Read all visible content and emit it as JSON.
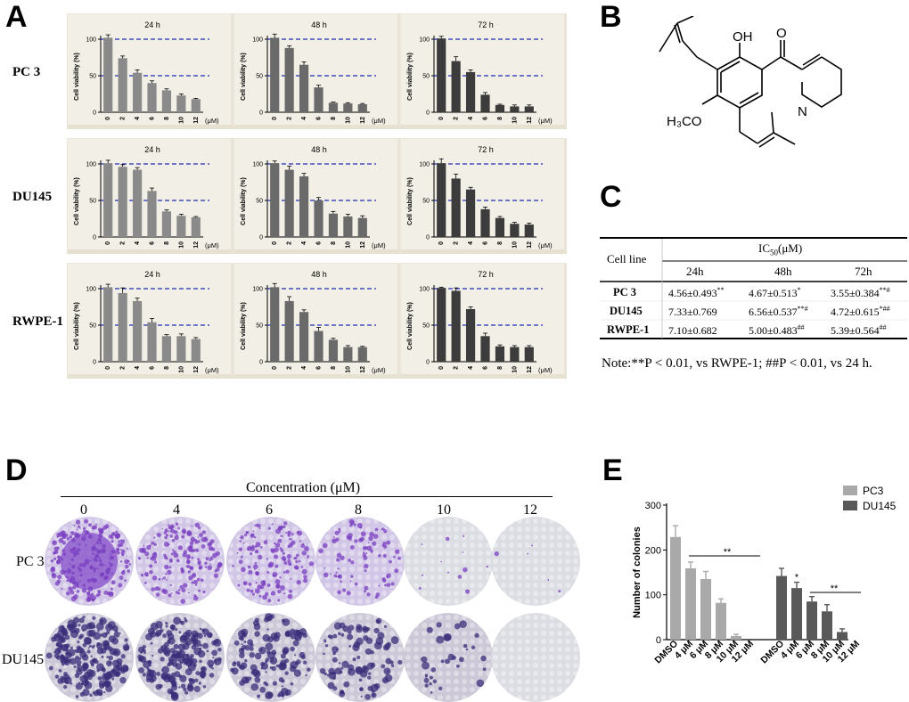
{
  "panel_letters": {
    "a": "A",
    "b": "B",
    "c": "C",
    "d": "D",
    "e": "E"
  },
  "panel_a": {
    "row_labels": [
      "PC 3",
      "DU145",
      "RWPE-1"
    ],
    "ylabel": "Cell viability (%)",
    "unit": "(μM)",
    "colors": {
      "24": "#8a8a8a",
      "48": "#6a6a6a",
      "72": "#3c3c3c",
      "dash": "#1f2bb3"
    }
  },
  "chart_data": [
    {
      "type": "bar",
      "title": "24 h",
      "row": "PC 3",
      "categories": [
        "0",
        "2",
        "4",
        "6",
        "8",
        "10",
        "12"
      ],
      "values": [
        102,
        74,
        54,
        40,
        30,
        23,
        18
      ],
      "errors": [
        4,
        3,
        4,
        3,
        2,
        2,
        1
      ],
      "ylim": [
        0,
        100
      ],
      "yticks": [
        "0",
        "50",
        "100"
      ],
      "ylabel": "Cell viability (%)",
      "reference_lines": [
        100,
        50
      ]
    },
    {
      "type": "bar",
      "title": "48 h",
      "row": "PC 3",
      "categories": [
        "0",
        "2",
        "4",
        "6",
        "8",
        "10",
        "12"
      ],
      "values": [
        102,
        88,
        65,
        34,
        13,
        12,
        11
      ],
      "errors": [
        5,
        3,
        4,
        3,
        1,
        1,
        1
      ],
      "ylim": [
        0,
        100
      ],
      "yticks": [
        "0",
        "50",
        "100"
      ],
      "ylabel": "Cell viability (%)",
      "reference_lines": [
        100,
        50
      ]
    },
    {
      "type": "bar",
      "title": "72 h",
      "row": "PC 3",
      "categories": [
        "0",
        "2",
        "4",
        "6",
        "8",
        "10",
        "12"
      ],
      "values": [
        101,
        70,
        55,
        24,
        10,
        8,
        8
      ],
      "errors": [
        3,
        6,
        3,
        3,
        1,
        2,
        2
      ],
      "ylim": [
        0,
        100
      ],
      "yticks": [
        "0",
        "50",
        "100"
      ],
      "ylabel": "Cell viability (%)",
      "reference_lines": [
        100,
        50
      ]
    },
    {
      "type": "bar",
      "title": "24 h",
      "row": "DU145",
      "categories": [
        "0",
        "2",
        "4",
        "6",
        "8",
        "10",
        "12"
      ],
      "values": [
        101,
        96,
        92,
        63,
        35,
        29,
        27
      ],
      "errors": [
        4,
        3,
        3,
        4,
        2,
        2,
        1
      ],
      "ylim": [
        0,
        100
      ],
      "yticks": [
        "0",
        "50",
        "100"
      ],
      "ylabel": "Cell viability (%)",
      "reference_lines": [
        100,
        50
      ]
    },
    {
      "type": "bar",
      "title": "48 h",
      "row": "DU145",
      "categories": [
        "0",
        "2",
        "4",
        "6",
        "8",
        "10",
        "12"
      ],
      "values": [
        101,
        92,
        83,
        50,
        32,
        28,
        26
      ],
      "errors": [
        3,
        5,
        4,
        4,
        3,
        3,
        3
      ],
      "ylim": [
        0,
        100
      ],
      "yticks": [
        "0",
        "50",
        "100"
      ],
      "ylabel": "Cell viability (%)",
      "reference_lines": [
        100,
        50
      ]
    },
    {
      "type": "bar",
      "title": "72 h",
      "row": "DU145",
      "categories": [
        "0",
        "2",
        "4",
        "6",
        "8",
        "10",
        "12"
      ],
      "values": [
        101,
        80,
        65,
        38,
        26,
        18,
        17
      ],
      "errors": [
        6,
        6,
        3,
        3,
        2,
        2,
        2
      ],
      "ylim": [
        0,
        100
      ],
      "yticks": [
        "0",
        "50",
        "100"
      ],
      "ylabel": "Cell viability (%)",
      "reference_lines": [
        100,
        50
      ]
    },
    {
      "type": "bar",
      "title": "24 h",
      "row": "RWPE-1",
      "categories": [
        "0",
        "2",
        "4",
        "6",
        "8",
        "10",
        "12"
      ],
      "values": [
        102,
        94,
        83,
        54,
        35,
        35,
        31
      ],
      "errors": [
        4,
        7,
        4,
        5,
        2,
        3,
        2
      ],
      "ylim": [
        0,
        100
      ],
      "yticks": [
        "0",
        "50",
        "100"
      ],
      "ylabel": "Cell viability (%)",
      "reference_lines": [
        100,
        50
      ]
    },
    {
      "type": "bar",
      "title": "48 h",
      "row": "RWPE-1",
      "categories": [
        "0",
        "2",
        "4",
        "6",
        "8",
        "10",
        "12"
      ],
      "values": [
        102,
        83,
        68,
        42,
        30,
        20,
        20
      ],
      "errors": [
        5,
        6,
        3,
        5,
        2,
        2,
        1
      ],
      "ylim": [
        0,
        100
      ],
      "yticks": [
        "0",
        "50",
        "100"
      ],
      "ylabel": "Cell viability (%)",
      "reference_lines": [
        100,
        50
      ]
    },
    {
      "type": "bar",
      "title": "72 h",
      "row": "RWPE-1",
      "categories": [
        "0",
        "2",
        "4",
        "6",
        "8",
        "10",
        "12"
      ],
      "values": [
        101,
        97,
        72,
        35,
        21,
        20,
        20
      ],
      "errors": [
        1,
        4,
        3,
        4,
        2,
        2,
        2
      ],
      "ylim": [
        0,
        100
      ],
      "yticks": [
        "0",
        "50",
        "100"
      ],
      "ylabel": "Cell viability (%)",
      "reference_lines": [
        100,
        50
      ]
    },
    {
      "type": "bar",
      "title": "",
      "row": "E",
      "categories": [
        "DMSO",
        "4 μM",
        "6 μM",
        "8 μM",
        "10 μM",
        "12 μM"
      ],
      "series": [
        {
          "name": "PC3",
          "values": [
            229,
            159,
            135,
            82,
            8,
            0
          ],
          "errors": [
            25,
            14,
            17,
            9,
            4,
            0
          ]
        },
        {
          "name": "DU145",
          "values": [
            142,
            115,
            85,
            63,
            17,
            0
          ],
          "errors": [
            17,
            13,
            11,
            15,
            7,
            0
          ]
        }
      ],
      "ylim": [
        0,
        300
      ],
      "yticks": [
        "0",
        "100",
        "200",
        "300"
      ],
      "ylabel": "Number of colonies",
      "annotations": [
        {
          "series": "PC3",
          "text": "**"
        },
        {
          "series": "DU145",
          "text": "*"
        },
        {
          "series": "DU145",
          "text": "**"
        }
      ],
      "legend": "top-right"
    }
  ],
  "panel_b": {
    "labels": {
      "oh": "OH",
      "o": "O",
      "n": "N",
      "h3c": "H₃CO"
    }
  },
  "panel_c": {
    "header_cell_line": "Cell line",
    "header_ic50": "IC",
    "header_ic50_sub": "50",
    "header_ic50_unit": "(μM)",
    "cols": [
      "24h",
      "48h",
      "72h"
    ],
    "rows": [
      {
        "name": "PC 3",
        "v24": "4.56±0.493",
        "s24": "**",
        "v48": "4.67±0.513",
        "s48": "*",
        "v72": "3.55±0.384",
        "s72": "**#"
      },
      {
        "name": "DU145",
        "v24": "7.33±0.769",
        "s24": "",
        "v48": "6.56±0.537",
        "s48": "**#",
        "v72": "4.72±0.615",
        "s72": "*##"
      },
      {
        "name": "RWPE-1",
        "v24": "7.10±0.682",
        "s24": "",
        "v48": "5.00±0.483",
        "s48": "##",
        "v72": "5.39±0.564",
        "s72": "##"
      }
    ],
    "note": "Note:**P < 0.01, vs RWPE-1; ##P < 0.01, vs 24 h."
  },
  "panel_d": {
    "title": "Concentration (μM)",
    "concentrations": [
      "0",
      "4",
      "6",
      "8",
      "10",
      "12"
    ],
    "row_labels": [
      "PC 3",
      "DU145"
    ],
    "colony_density": {
      "pc3": [
        1.0,
        0.8,
        0.65,
        0.4,
        0.04,
        0.01
      ],
      "du145": [
        1.0,
        0.85,
        0.6,
        0.45,
        0.15,
        0.0
      ]
    }
  },
  "panel_e": {
    "legend": [
      "PC3",
      "DU145"
    ],
    "colors": {
      "pc3": "#a9a9a9",
      "du145": "#595959"
    }
  }
}
